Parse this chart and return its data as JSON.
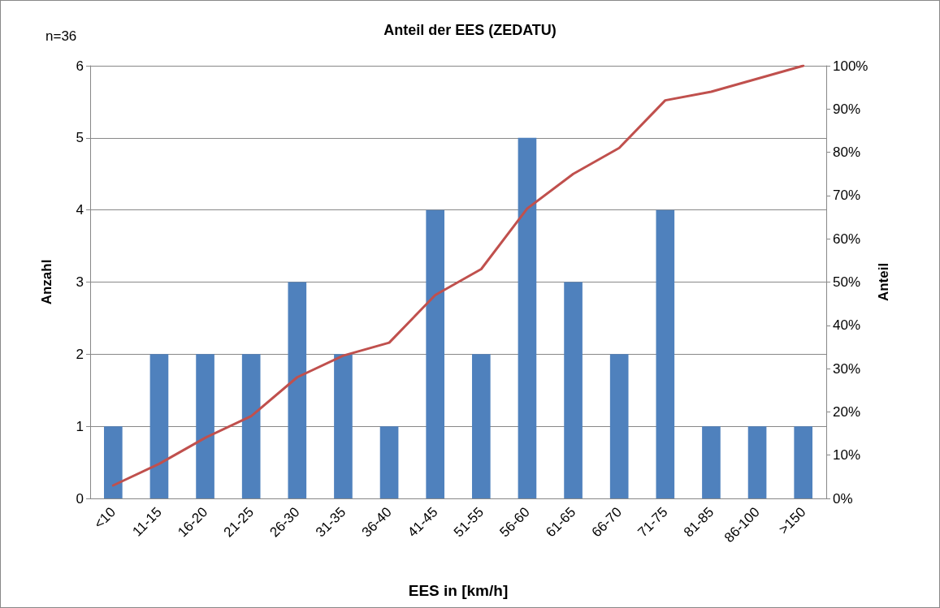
{
  "chart_data": {
    "type": "bar",
    "title": "Anteil der EES (ZEDATU)",
    "xlabel": "EES in [km/h]",
    "ylabel": "Anzahl",
    "y2label": "Anteil",
    "annotations": [
      "n=36"
    ],
    "categories": [
      "<10",
      "11-15",
      "16-20",
      "21-25",
      "26-30",
      "31-35",
      "36-40",
      "41-45",
      "51-55",
      "56-60",
      "61-65",
      "66-70",
      "71-75",
      "81-85",
      "86-100",
      ">150"
    ],
    "series": [
      {
        "color": "#4f81bd",
        "values": [
          1,
          2,
          2,
          2,
          3,
          2,
          1,
          4,
          2,
          5,
          3,
          2,
          4,
          1,
          1,
          1
        ]
      },
      {
        "type": "line",
        "axis": "y2",
        "color": "#c0504d",
        "values": [
          3,
          8,
          14,
          19,
          28,
          33,
          36,
          47,
          53,
          67,
          75,
          81,
          92,
          94,
          97,
          100
        ]
      }
    ],
    "ylim": [
      0,
      6
    ],
    "yticks": [
      0,
      1,
      2,
      3,
      4,
      5,
      6
    ],
    "y2lim": [
      0,
      100
    ],
    "y2ticks": [
      {
        "value": 0,
        "label": "0%"
      },
      {
        "value": 10,
        "label": "10%"
      },
      {
        "value": 20,
        "label": "20%"
      },
      {
        "value": 30,
        "label": "30%"
      },
      {
        "value": 40,
        "label": "40%"
      },
      {
        "value": 50,
        "label": "50%"
      },
      {
        "value": 60,
        "label": "60%"
      },
      {
        "value": 70,
        "label": "70%"
      },
      {
        "value": 80,
        "label": "80%"
      },
      {
        "value": 90,
        "label": "90%"
      },
      {
        "value": 100,
        "label": "100%"
      }
    ],
    "grid": "y",
    "marker": "none",
    "line_style": "solid"
  }
}
